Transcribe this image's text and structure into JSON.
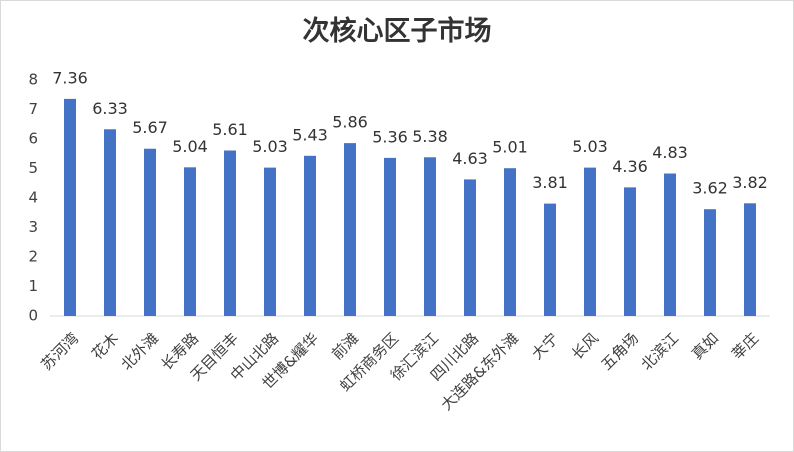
{
  "chart_data": {
    "type": "bar",
    "title": "次核心区子市场",
    "categories": [
      "苏河湾",
      "花木",
      "北外滩",
      "长寿路",
      "天目恒丰",
      "中山北路",
      "世博&耀华",
      "前滩",
      "虹桥商务区",
      "徐汇滨江",
      "四川北路",
      "大连路&东外滩",
      "大宁",
      "长风",
      "五角场",
      "北滨江",
      "真如",
      "莘庄"
    ],
    "values": [
      7.36,
      6.33,
      5.67,
      5.04,
      5.61,
      5.03,
      5.43,
      5.86,
      5.36,
      5.38,
      4.63,
      5.01,
      3.81,
      5.03,
      4.36,
      4.83,
      3.62,
      3.82
    ],
    "color": "#4472c4",
    "ylim": [
      0,
      8
    ],
    "yticks": [
      0,
      1,
      2,
      3,
      4,
      5,
      6,
      7,
      8
    ],
    "grid": false
  }
}
